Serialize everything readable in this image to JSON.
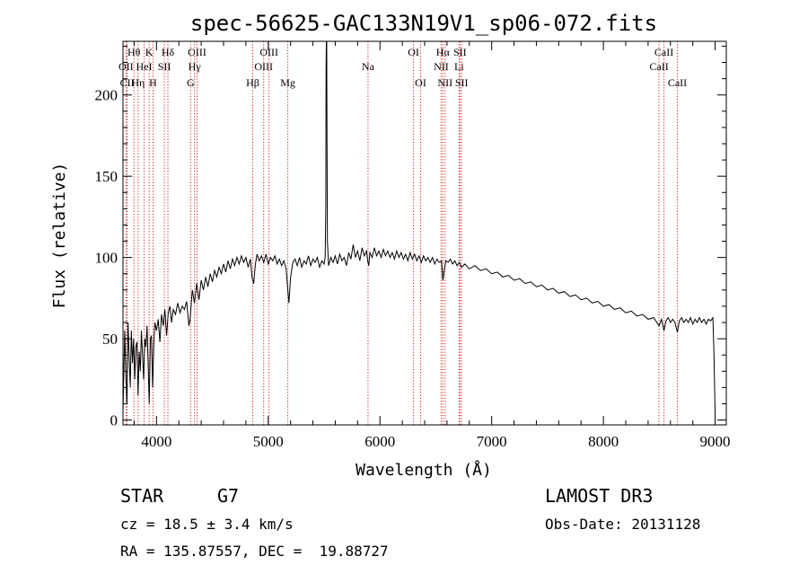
{
  "chart_data": {
    "type": "line",
    "title": "spec-56625-GAC133N19V1_sp06-072.fits",
    "xlabel": "Wavelength (Å)",
    "ylabel": "Flux (relative)",
    "xlim": [
      3700,
      9100
    ],
    "ylim": [
      -3,
      233
    ],
    "xticks": [
      4000,
      5000,
      6000,
      7000,
      8000,
      9000
    ],
    "yticks": [
      0,
      50,
      100,
      150,
      200
    ],
    "series": [
      {
        "name": "flux",
        "points": [
          [
            3700,
            5
          ],
          [
            3715,
            55
          ],
          [
            3725,
            30
          ],
          [
            3735,
            10
          ],
          [
            3745,
            60
          ],
          [
            3755,
            40
          ],
          [
            3765,
            20
          ],
          [
            3775,
            55
          ],
          [
            3785,
            35
          ],
          [
            3795,
            50
          ],
          [
            3805,
            25
          ],
          [
            3815,
            45
          ],
          [
            3825,
            48
          ],
          [
            3835,
            15
          ],
          [
            3845,
            42
          ],
          [
            3855,
            30
          ],
          [
            3865,
            55
          ],
          [
            3875,
            40
          ],
          [
            3885,
            25
          ],
          [
            3895,
            50
          ],
          [
            3905,
            45
          ],
          [
            3915,
            58
          ],
          [
            3925,
            35
          ],
          [
            3935,
            10
          ],
          [
            3945,
            50
          ],
          [
            3955,
            52
          ],
          [
            3965,
            20
          ],
          [
            3975,
            45
          ],
          [
            3985,
            60
          ],
          [
            4000,
            55
          ],
          [
            4015,
            62
          ],
          [
            4030,
            48
          ],
          [
            4045,
            65
          ],
          [
            4060,
            58
          ],
          [
            4075,
            68
          ],
          [
            4090,
            52
          ],
          [
            4105,
            66
          ],
          [
            4120,
            70
          ],
          [
            4135,
            60
          ],
          [
            4150,
            68
          ],
          [
            4170,
            65
          ],
          [
            4190,
            72
          ],
          [
            4210,
            66
          ],
          [
            4230,
            70
          ],
          [
            4250,
            68
          ],
          [
            4270,
            73
          ],
          [
            4290,
            58
          ],
          [
            4300,
            62
          ],
          [
            4320,
            80
          ],
          [
            4340,
            72
          ],
          [
            4360,
            84
          ],
          [
            4380,
            74
          ],
          [
            4400,
            86
          ],
          [
            4420,
            80
          ],
          [
            4440,
            88
          ],
          [
            4460,
            82
          ],
          [
            4480,
            90
          ],
          [
            4500,
            85
          ],
          [
            4520,
            92
          ],
          [
            4540,
            88
          ],
          [
            4560,
            94
          ],
          [
            4580,
            90
          ],
          [
            4600,
            96
          ],
          [
            4620,
            91
          ],
          [
            4640,
            98
          ],
          [
            4660,
            93
          ],
          [
            4680,
            99
          ],
          [
            4700,
            95
          ],
          [
            4720,
            100
          ],
          [
            4740,
            96
          ],
          [
            4760,
            101
          ],
          [
            4780,
            97
          ],
          [
            4800,
            100
          ],
          [
            4820,
            94
          ],
          [
            4840,
            99
          ],
          [
            4855,
            88
          ],
          [
            4870,
            84
          ],
          [
            4885,
            96
          ],
          [
            4900,
            102
          ],
          [
            4920,
            98
          ],
          [
            4940,
            101
          ],
          [
            4960,
            97
          ],
          [
            4980,
            102
          ],
          [
            5000,
            96
          ],
          [
            5020,
            100
          ],
          [
            5040,
            98
          ],
          [
            5060,
            101
          ],
          [
            5080,
            96
          ],
          [
            5100,
            99
          ],
          [
            5120,
            95
          ],
          [
            5140,
            98
          ],
          [
            5160,
            93
          ],
          [
            5175,
            80
          ],
          [
            5185,
            72
          ],
          [
            5200,
            88
          ],
          [
            5220,
            97
          ],
          [
            5240,
            99
          ],
          [
            5260,
            95
          ],
          [
            5280,
            100
          ],
          [
            5300,
            94
          ],
          [
            5320,
            98
          ],
          [
            5340,
            96
          ],
          [
            5360,
            101
          ],
          [
            5380,
            95
          ],
          [
            5400,
            99
          ],
          [
            5420,
            97
          ],
          [
            5440,
            100
          ],
          [
            5460,
            94
          ],
          [
            5480,
            98
          ],
          [
            5500,
            96
          ],
          [
            5510,
            100
          ],
          [
            5515,
            130
          ],
          [
            5518,
            215
          ],
          [
            5520,
            233
          ],
          [
            5523,
            233
          ],
          [
            5526,
            180
          ],
          [
            5530,
            110
          ],
          [
            5540,
            95
          ],
          [
            5560,
            100
          ],
          [
            5580,
            97
          ],
          [
            5600,
            101
          ],
          [
            5620,
            96
          ],
          [
            5640,
            102
          ],
          [
            5660,
            98
          ],
          [
            5680,
            100
          ],
          [
            5700,
            95
          ],
          [
            5720,
            103
          ],
          [
            5740,
            99
          ],
          [
            5760,
            108
          ],
          [
            5780,
            100
          ],
          [
            5800,
            104
          ],
          [
            5820,
            98
          ],
          [
            5840,
            106
          ],
          [
            5860,
            101
          ],
          [
            5880,
            104
          ],
          [
            5890,
            98
          ],
          [
            5900,
            95
          ],
          [
            5910,
            103
          ],
          [
            5930,
            100
          ],
          [
            5950,
            106
          ],
          [
            5970,
            101
          ],
          [
            5990,
            104
          ],
          [
            6010,
            100
          ],
          [
            6030,
            105
          ],
          [
            6050,
            101
          ],
          [
            6070,
            104
          ],
          [
            6090,
            100
          ],
          [
            6110,
            103
          ],
          [
            6130,
            99
          ],
          [
            6150,
            104
          ],
          [
            6170,
            100
          ],
          [
            6190,
            103
          ],
          [
            6210,
            99
          ],
          [
            6230,
            102
          ],
          [
            6250,
            98
          ],
          [
            6270,
            103
          ],
          [
            6290,
            99
          ],
          [
            6310,
            102
          ],
          [
            6330,
            98
          ],
          [
            6350,
            101
          ],
          [
            6370,
            97
          ],
          [
            6390,
            101
          ],
          [
            6410,
            98
          ],
          [
            6430,
            100
          ],
          [
            6450,
            97
          ],
          [
            6470,
            100
          ],
          [
            6490,
            96
          ],
          [
            6510,
            99
          ],
          [
            6530,
            97
          ],
          [
            6550,
            98
          ],
          [
            6563,
            86
          ],
          [
            6575,
            92
          ],
          [
            6590,
            98
          ],
          [
            6610,
            97
          ],
          [
            6630,
            99
          ],
          [
            6650,
            96
          ],
          [
            6670,
            98
          ],
          [
            6690,
            95
          ],
          [
            6710,
            97
          ],
          [
            6730,
            94
          ],
          [
            6760,
            96
          ],
          [
            6800,
            93
          ],
          [
            6850,
            95
          ],
          [
            6900,
            92
          ],
          [
            6950,
            93
          ],
          [
            7000,
            90
          ],
          [
            7050,
            91
          ],
          [
            7100,
            88
          ],
          [
            7150,
            89
          ],
          [
            7200,
            86
          ],
          [
            7250,
            87
          ],
          [
            7300,
            84
          ],
          [
            7350,
            85
          ],
          [
            7400,
            82
          ],
          [
            7450,
            83
          ],
          [
            7500,
            80
          ],
          [
            7550,
            81
          ],
          [
            7600,
            78
          ],
          [
            7650,
            79
          ],
          [
            7700,
            76
          ],
          [
            7750,
            77
          ],
          [
            7800,
            74
          ],
          [
            7850,
            75
          ],
          [
            7900,
            72
          ],
          [
            7950,
            73
          ],
          [
            8000,
            70
          ],
          [
            8050,
            71
          ],
          [
            8100,
            68
          ],
          [
            8150,
            69
          ],
          [
            8200,
            66
          ],
          [
            8250,
            67
          ],
          [
            8300,
            64
          ],
          [
            8350,
            65
          ],
          [
            8400,
            62
          ],
          [
            8450,
            63
          ],
          [
            8498,
            58
          ],
          [
            8520,
            62
          ],
          [
            8542,
            55
          ],
          [
            8560,
            61
          ],
          [
            8580,
            63
          ],
          [
            8600,
            60
          ],
          [
            8620,
            62
          ],
          [
            8640,
            60
          ],
          [
            8662,
            54
          ],
          [
            8680,
            61
          ],
          [
            8700,
            63
          ],
          [
            8720,
            60
          ],
          [
            8740,
            62
          ],
          [
            8760,
            60
          ],
          [
            8780,
            63
          ],
          [
            8800,
            59
          ],
          [
            8820,
            62
          ],
          [
            8840,
            60
          ],
          [
            8860,
            63
          ],
          [
            8880,
            60
          ],
          [
            8900,
            62
          ],
          [
            8920,
            59
          ],
          [
            8940,
            62
          ],
          [
            8960,
            61
          ],
          [
            8980,
            63
          ],
          [
            8990,
            40
          ],
          [
            8998,
            10
          ],
          [
            9000,
            2
          ]
        ]
      }
    ],
    "lines": [
      {
        "label": "Hθ",
        "wave": 3798,
        "row": 1
      },
      {
        "label": "OII",
        "wave": 3727,
        "row": 2
      },
      {
        "label": "CII",
        "wave": 3737,
        "row": 3
      },
      {
        "label": "Hη",
        "wave": 3835,
        "row": 3
      },
      {
        "label": "HeI",
        "wave": 3889,
        "row": 2
      },
      {
        "label": "K",
        "wave": 3934,
        "row": 1
      },
      {
        "label": "H",
        "wave": 3969,
        "row": 3
      },
      {
        "label": "SII",
        "wave": 4070,
        "row": 2
      },
      {
        "label": "Hδ",
        "wave": 4102,
        "row": 1
      },
      {
        "label": "OIII",
        "wave": 4363,
        "row": 1
      },
      {
        "label": "Hγ",
        "wave": 4340,
        "row": 2
      },
      {
        "label": "G",
        "wave": 4305,
        "row": 3
      },
      {
        "label": "Hβ",
        "wave": 4861,
        "row": 3
      },
      {
        "label": "OIII",
        "wave": 5007,
        "row": 1
      },
      {
        "label": "OIII",
        "wave": 4959,
        "row": 2
      },
      {
        "label": "Mg",
        "wave": 5175,
        "row": 3
      },
      {
        "label": "Na",
        "wave": 5893,
        "row": 2
      },
      {
        "label": "OI",
        "wave": 6300,
        "row": 1
      },
      {
        "label": "OI",
        "wave": 6364,
        "row": 3
      },
      {
        "label": "Hα",
        "wave": 6563,
        "row": 1
      },
      {
        "label": "NII",
        "wave": 6548,
        "row": 2
      },
      {
        "label": "NII",
        "wave": 6583,
        "row": 3
      },
      {
        "label": "SII",
        "wave": 6716,
        "row": 1
      },
      {
        "label": "Li",
        "wave": 6708,
        "row": 2
      },
      {
        "label": "SII",
        "wave": 6731,
        "row": 3
      },
      {
        "label": "CaII",
        "wave": 8542,
        "row": 1
      },
      {
        "label": "CaII",
        "wave": 8498,
        "row": 2
      },
      {
        "label": "CaII",
        "wave": 8662,
        "row": 3
      }
    ]
  },
  "info": {
    "class": "STAR",
    "subclass": "G7",
    "redshift": "cz = 18.5 ± 3.4 km/s",
    "coords": "RA = 135.87557, DEC =  19.88727",
    "survey": "LAMOST DR3",
    "obsdate": "Obs-Date: 20131128"
  },
  "colors": {
    "axis": "#000000",
    "spectrum": "#000000",
    "lineMarker": "#cc2222"
  }
}
